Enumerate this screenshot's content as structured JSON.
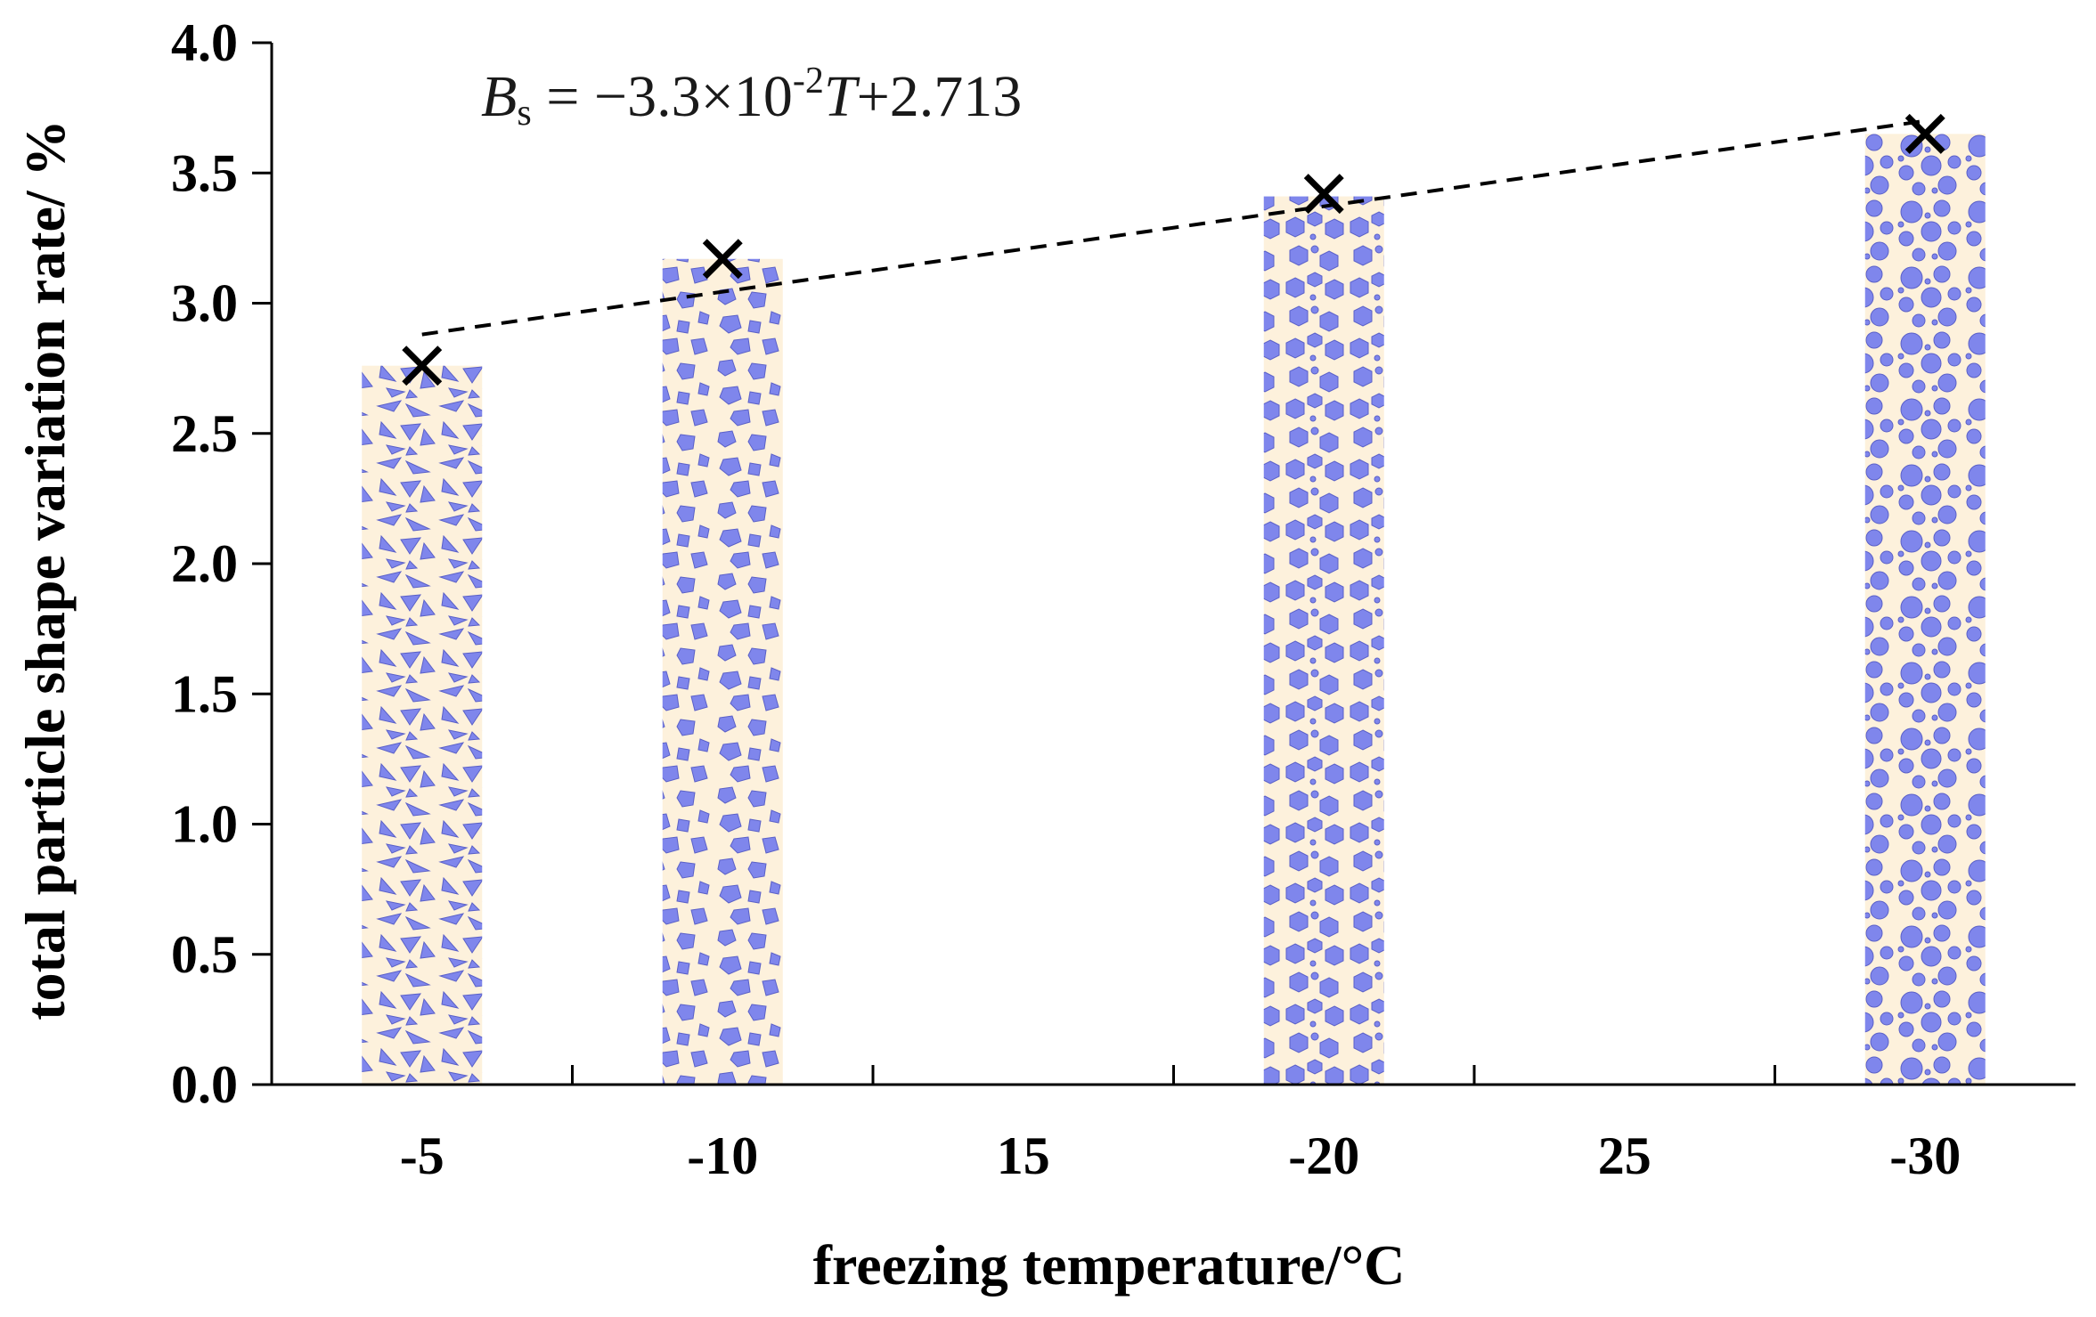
{
  "chart_data": {
    "type": "bar",
    "title": "",
    "xlabel": "freezing temperature/°C",
    "ylabel": "total particle shape variation rate/ %",
    "categories": [
      "-5",
      "-10",
      "15",
      "-20",
      "25",
      "-30"
    ],
    "bar_categories": [
      "-5",
      "-10",
      "-20",
      "-30"
    ],
    "bar_values": [
      2.76,
      3.17,
      3.41,
      3.65
    ],
    "bar_patterns": [
      "shards",
      "polygons",
      "hexagons",
      "circles"
    ],
    "markers": {
      "symbol": "×",
      "categories": [
        "-5",
        "-10",
        "-20",
        "-30"
      ],
      "values": [
        2.76,
        3.17,
        3.42,
        3.65
      ]
    },
    "trendline": {
      "style": "dashed",
      "start": {
        "category": "-5",
        "value": 2.88
      },
      "end": {
        "category": "-30",
        "value": 3.7
      }
    },
    "annotation": {
      "B": "B",
      "sub": "s",
      "eq": " = −3.3×10",
      "exp": "-2",
      "T": "T",
      "tail": "+2.713"
    },
    "ylim": [
      0.0,
      4.0
    ],
    "yticks": [
      "0.0",
      "0.5",
      "1.0",
      "1.5",
      "2.0",
      "2.5",
      "3.0",
      "3.5",
      "4.0"
    ],
    "grid": false,
    "legend": "none"
  },
  "colors": {
    "bar_background": "#fdf1dc",
    "particle_fill": "#7f86ec",
    "particle_stroke": "#5a60c8",
    "axis": "#000000",
    "trendline": "#000000",
    "marker": "#000000"
  }
}
